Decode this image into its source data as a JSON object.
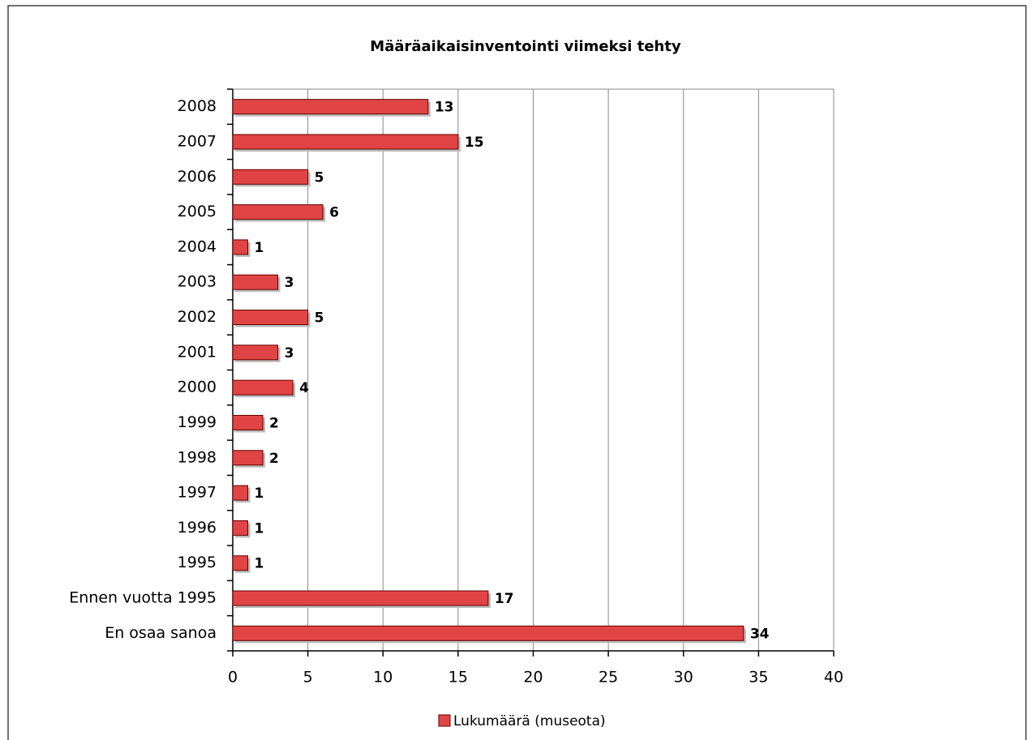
{
  "chart_data": {
    "type": "bar",
    "orientation": "horizontal",
    "title": "Määräaikaisinventointi viimeksi tehty",
    "categories": [
      "2008",
      "2007",
      "2006",
      "2005",
      "2004",
      "2003",
      "2002",
      "2001",
      "2000",
      "1999",
      "1998",
      "1997",
      "1996",
      "1995",
      "Ennen vuotta 1995",
      "En osaa sanoa"
    ],
    "series": [
      {
        "name": "Lukumäärä (museota)",
        "color": "#e04444",
        "values": [
          13,
          15,
          5,
          6,
          1,
          3,
          5,
          3,
          4,
          2,
          2,
          1,
          1,
          1,
          17,
          34
        ]
      }
    ],
    "xlim": [
      0,
      40
    ],
    "xticks": [
      0,
      5,
      10,
      15,
      20,
      25,
      30,
      35,
      40
    ],
    "grid": true,
    "legend": "bottom"
  }
}
